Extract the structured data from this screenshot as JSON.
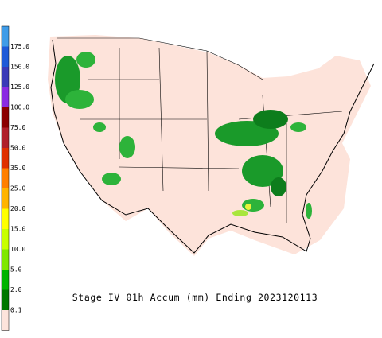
{
  "legend": {
    "labels": [
      "175.0",
      "150.0",
      "125.0",
      "100.0",
      "75.0",
      "50.0",
      "35.0",
      "25.0",
      "20.0",
      "15.0",
      "10.0",
      "5.0",
      "2.0",
      "0.1"
    ]
  },
  "caption": "Stage IV 01h Accum (mm) Ending 2023120113"
}
